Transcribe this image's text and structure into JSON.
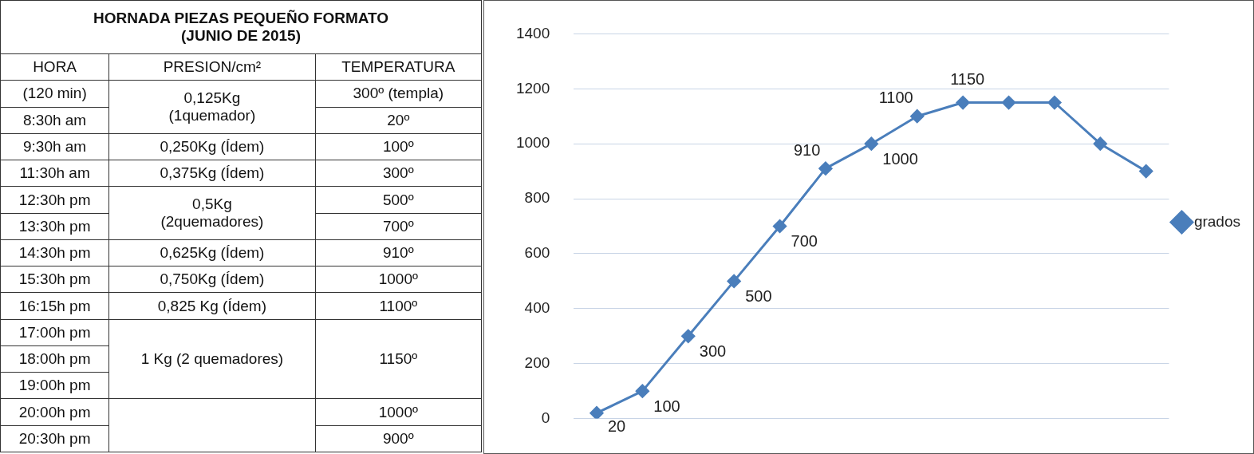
{
  "chart_data": [
    {
      "type": "other",
      "title": "HORNADA PIEZAS PEQUEÑO FORMATO",
      "subtitle": "(JUNIO DE 2015)",
      "annotations": [
        "HORA",
        "PRESION/cm²",
        "TEMPERATURA",
        "(120 min)",
        "0,125Kg\n(1quemador)",
        "300º (templa)",
        "8:30h am",
        "20º",
        "9:30h am",
        "0,250Kg (Ídem)",
        "100º",
        "11:30h am",
        "0,375Kg (Ídem)",
        "300º",
        "12:30h pm",
        "0,5Kg\n(2quemadores)",
        "500º",
        "13:30h pm",
        "700º",
        "14:30h pm",
        "0,625Kg (Ídem)",
        "910º",
        "15:30h pm",
        "0,750Kg (Ídem)",
        "1000º",
        "16:15h pm",
        "0,825 Kg (Ídem)",
        "1100º",
        "17:00h pm",
        "1 Kg (2 quemadores)",
        "1150º",
        "18:00h pm",
        "19:00h pm",
        "20:00h pm",
        "1000º",
        "20:30h pm",
        "900º"
      ]
    },
    {
      "type": "line",
      "categories": [
        null,
        null,
        null,
        null,
        null,
        null,
        null,
        null,
        null,
        null,
        null,
        null,
        null
      ],
      "series": [
        {
          "name": "grados",
          "color": "#4a7ebb",
          "values": [
            20,
            100,
            300,
            500,
            700,
            910,
            1000,
            1100,
            1150,
            1150,
            1150,
            1000,
            900
          ],
          "value_labels": [
            "20",
            "100",
            "300",
            "500",
            "700",
            "910",
            "1000",
            "1100",
            "1150",
            null,
            null,
            null,
            null
          ]
        }
      ],
      "ylim": [
        0,
        1400
      ],
      "yticks": [
        0,
        200,
        400,
        600,
        800,
        1000,
        1200,
        1400
      ],
      "grid": "y",
      "legend": "right",
      "marker": "diamond",
      "line_style": "solid",
      "tick_labels": "y"
    }
  ]
}
